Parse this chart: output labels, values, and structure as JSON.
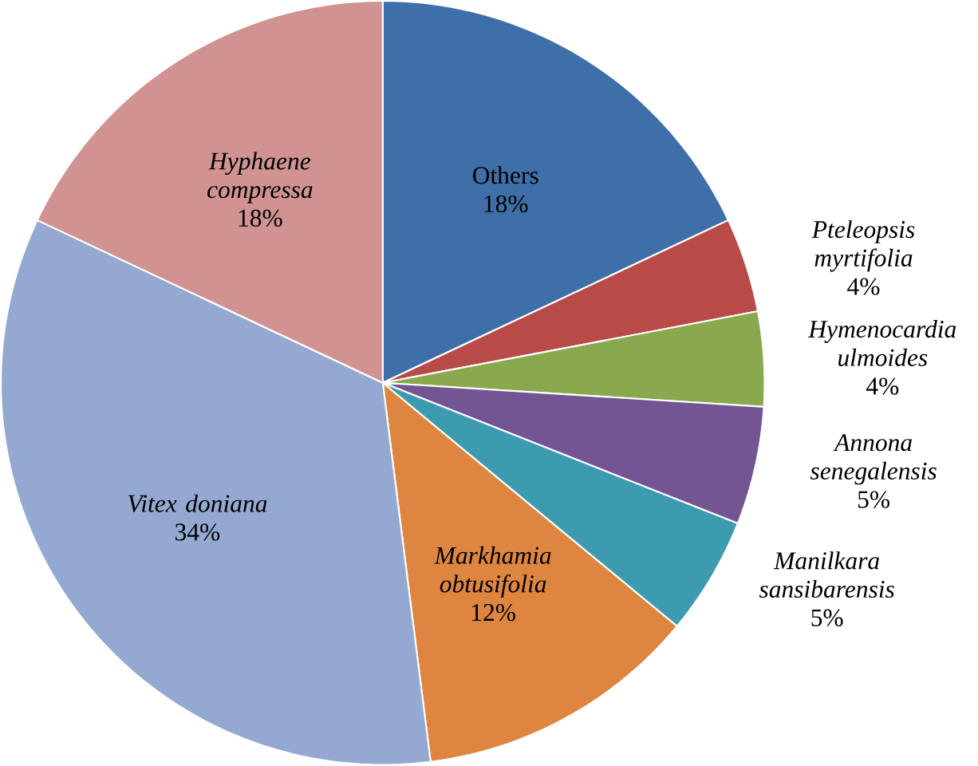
{
  "chart_data": {
    "type": "pie",
    "categories": [
      "Others",
      "*Pteleopsis myrtifolia*",
      "*Hymenocardia ulmoides*",
      "*Annona senegalensis*",
      "*Manilkara sansibarensis*",
      "*Markhamia obtusifolia*",
      "*Vitex doniana*",
      "*Hyphaene compressa*"
    ],
    "values": [
      18,
      4,
      4,
      5,
      5,
      12,
      34,
      18
    ],
    "value_labels": [
      "18%",
      "4%",
      "4%",
      "5%",
      "5%",
      "12%",
      "34%",
      "18%"
    ],
    "colors": [
      "#3f6fa8",
      "#b84a47",
      "#8aa84e",
      "#725592",
      "#3d9bb0",
      "#de8640",
      "#93a9d2",
      "#d09391"
    ]
  }
}
